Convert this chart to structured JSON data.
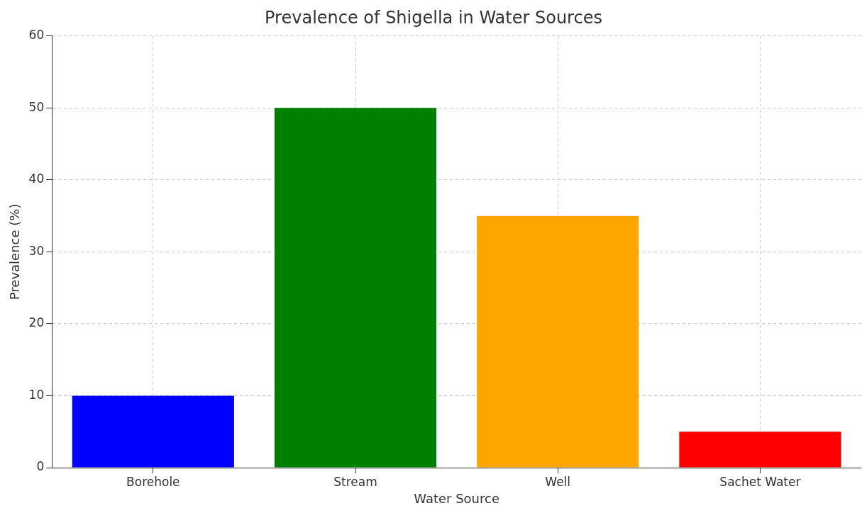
{
  "chart_data": {
    "type": "bar",
    "title": "Prevalence of Shigella in Water Sources",
    "xlabel": "Water Source",
    "ylabel": "Prevalence (%)",
    "categories": [
      "Borehole",
      "Stream",
      "Well",
      "Sachet Water"
    ],
    "values": [
      10,
      50,
      35,
      5
    ],
    "colors": [
      "#0000ff",
      "#008000",
      "#ffa500",
      "#ff0000"
    ],
    "ylim": [
      0,
      60
    ],
    "yticks": [
      0,
      10,
      20,
      30,
      40,
      50,
      60
    ],
    "grid": true
  }
}
